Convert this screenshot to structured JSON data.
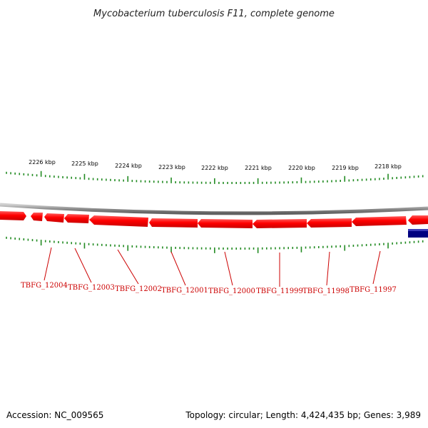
{
  "title": "Mycobacterium tuberculosis F11, complete genome",
  "scale_labels": [
    "2226 kbp",
    "2225 kbp",
    "2224 kbp",
    "2223 kbp",
    "2222 kbp",
    "2221 kbp",
    "2220 kbp",
    "2219 kbp",
    "2218 kbp"
  ],
  "gene_labels": [
    "TBFG_12004",
    "TBFG_12003",
    "TBFG_12002",
    "TBFG_12001",
    "TBFG_12000",
    "TBFG_11999",
    "TBFG_11998",
    "TBFG_11997"
  ],
  "footer": {
    "accession": "Accession: NC_009565",
    "stats": "Topology: circular; Length: 4,424,435 bp; Genes: 3,989"
  },
  "colors": {
    "forward_gene": "#ff0000",
    "other_gene": "#000080",
    "tick": "#228b22",
    "label_line": "#cc0000",
    "backbone": "#808080"
  }
}
